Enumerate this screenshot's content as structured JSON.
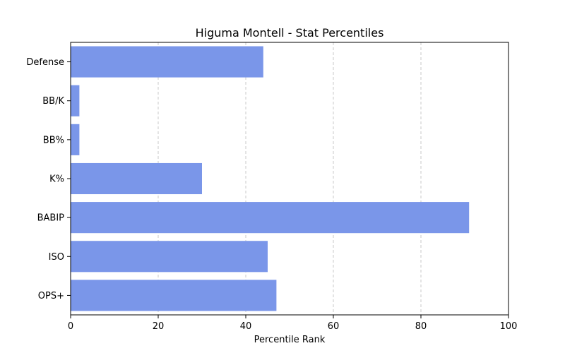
{
  "chart_data": {
    "type": "bar",
    "orientation": "horizontal",
    "title": "Higuma Montell - Stat Percentiles",
    "xlabel": "Percentile Rank",
    "ylabel": "",
    "xlim": [
      0,
      100
    ],
    "xticks": [
      "0",
      "20",
      "40",
      "60",
      "80",
      "100"
    ],
    "categories": [
      "Defense",
      "BB/K",
      "BB%",
      "K%",
      "BABIP",
      "ISO",
      "OPS+"
    ],
    "values": [
      44,
      2,
      2,
      30,
      91,
      45,
      47
    ],
    "grid": "x-dashed",
    "bar_color": "#7a96e9",
    "grid_color": "#c8c8c8"
  }
}
